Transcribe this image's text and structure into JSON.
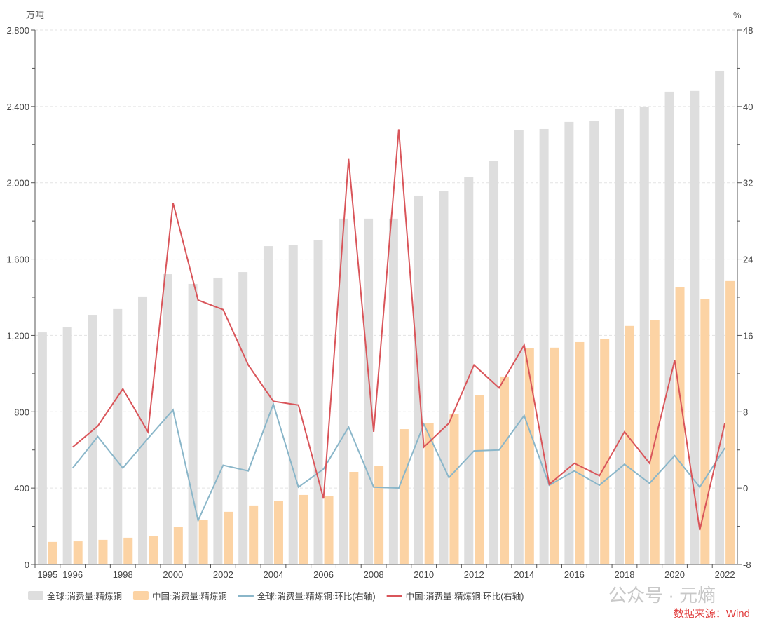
{
  "chart_data": {
    "type": "bar+line",
    "left_axis": {
      "label": "万吨",
      "ylim": [
        0,
        2800
      ],
      "ticks": [
        0,
        400,
        800,
        1200,
        1600,
        2000,
        2400,
        2800
      ],
      "tick_labels": [
        "0",
        "400",
        "800",
        "1,200",
        "1,600",
        "2,000",
        "2,400",
        "2,800"
      ]
    },
    "right_axis": {
      "label": "%",
      "ylim": [
        -8,
        48
      ],
      "ticks": [
        -8,
        0,
        8,
        16,
        24,
        32,
        40,
        48
      ],
      "tick_labels": [
        "-8",
        "0",
        "8",
        "16",
        "24",
        "32",
        "40",
        "48"
      ]
    },
    "categories": [
      1995,
      1996,
      1997,
      1998,
      1999,
      2000,
      2001,
      2002,
      2003,
      2004,
      2005,
      2006,
      2007,
      2008,
      2009,
      2010,
      2011,
      2012,
      2013,
      2014,
      2015,
      2016,
      2017,
      2018,
      2019,
      2020,
      2021,
      2022
    ],
    "x_tick_labels": [
      "1995",
      "1996",
      "1998",
      "2000",
      "2002",
      "2004",
      "2006",
      "2008",
      "2010",
      "2012",
      "2014",
      "2016",
      "2018",
      "2020",
      "2022"
    ],
    "grid": "horizontal dashed",
    "legend_position": "bottom",
    "series": [
      {
        "name": "全球:消费量:精炼铜",
        "type": "bar",
        "axis": "left",
        "color": "#dedede",
        "values": [
          1216,
          1242,
          1308,
          1338,
          1404,
          1521,
          1470,
          1503,
          1532,
          1668,
          1672,
          1701,
          1812,
          1812,
          1812,
          1933,
          1955,
          2032,
          2113,
          2275,
          2282,
          2319,
          2326,
          2385,
          2396,
          2477,
          2481,
          2587
        ]
      },
      {
        "name": "中国:消费量:精炼铜",
        "type": "bar",
        "axis": "left",
        "color": "#fcd3a4",
        "values": [
          118,
          121,
          129,
          140,
          147,
          195,
          232,
          276,
          309,
          334,
          364,
          360,
          485,
          515,
          709,
          739,
          790,
          889,
          985,
          1132,
          1136,
          1165,
          1180,
          1250,
          1279,
          1455,
          1389,
          1485
        ]
      },
      {
        "name": "全球:消费量:精炼铜:环比(右轴)",
        "type": "line",
        "axis": "right",
        "color": "#8ab6c9",
        "values": [
          null,
          2.1,
          5.4,
          2.1,
          5.2,
          8.2,
          -3.4,
          2.4,
          1.8,
          8.8,
          0.1,
          2.0,
          6.4,
          0.1,
          0.0,
          6.7,
          1.1,
          3.9,
          4.0,
          7.6,
          0.3,
          1.8,
          0.3,
          2.5,
          0.5,
          3.4,
          0.1,
          4.2
        ]
      },
      {
        "name": "中国:消费量:精炼铜:环比(右轴)",
        "type": "line",
        "axis": "right",
        "color": "#d9555a",
        "values": [
          null,
          4.3,
          6.5,
          10.4,
          5.9,
          29.9,
          19.7,
          18.7,
          12.9,
          9.1,
          8.7,
          -1.1,
          34.5,
          5.9,
          37.6,
          4.3,
          6.8,
          12.9,
          10.5,
          15.0,
          0.4,
          2.6,
          1.3,
          5.9,
          2.6,
          13.4,
          -4.4,
          6.8
        ]
      }
    ]
  },
  "watermark": "公众号 · 元熵",
  "source": "数据来源：Wind"
}
